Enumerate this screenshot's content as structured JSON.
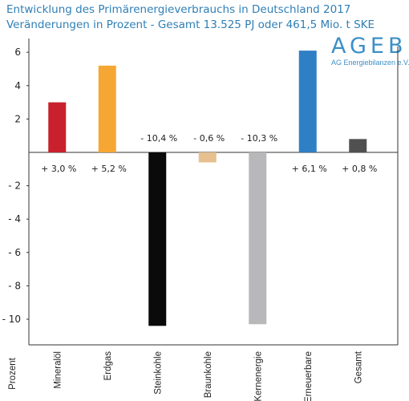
{
  "header": {
    "title_line1": "Entwicklung des Primärenergieverbrauchs in Deutschland 2017",
    "title_line2": "Veränderungen in Prozent - Gesamt 13.525 PJ oder 461,5 Mio. t SKE"
  },
  "logo": {
    "main": "AGEB",
    "sub": "AG Energiebilanzen e.V."
  },
  "chart_data": {
    "type": "bar",
    "title": "Entwicklung des Primärenergieverbrauchs in Deutschland 2017",
    "subtitle": "Veränderungen in Prozent - Gesamt 13.525 PJ oder 461,5 Mio. t SKE",
    "xlabel": "",
    "ylabel": "Prozent",
    "ylim": [
      -11,
      7
    ],
    "y_ticks": [
      6,
      4,
      2,
      -2,
      -4,
      -6,
      -8,
      -10
    ],
    "y_tick_labels": [
      "6",
      "4",
      "2",
      "- 2",
      "- 4",
      "- 6",
      "- 8",
      "- 10"
    ],
    "grid": false,
    "categories": [
      "Mineralöl",
      "Erdgas",
      "Steinkohle",
      "Braunkohle",
      "Kernenergie",
      "Erneuerbare",
      "Gesamt"
    ],
    "values": [
      3.0,
      5.2,
      -10.4,
      -0.6,
      -10.3,
      6.1,
      0.8
    ],
    "value_labels": [
      "+ 3,0 %",
      "+ 5,2 %",
      "- 10,4 %",
      "- 0,6 %",
      "- 10,3 %",
      "+ 6,1 %",
      "+ 0,8 %"
    ],
    "colors": [
      "#c8202c",
      "#f6a733",
      "#0a0a0a",
      "#e6c08f",
      "#b8b8ba",
      "#2f7fc4",
      "#505050"
    ]
  }
}
